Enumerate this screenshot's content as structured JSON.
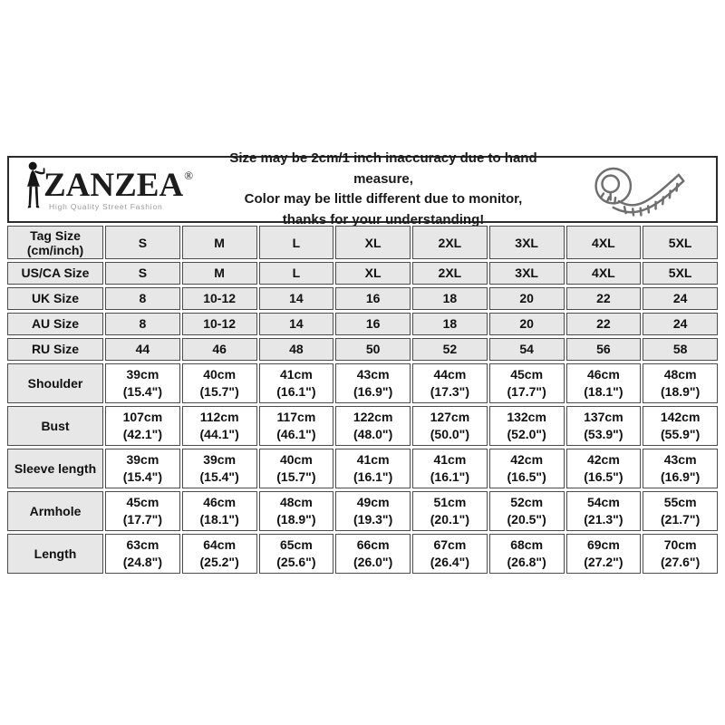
{
  "brand": {
    "name": "ZANZEA",
    "registered": "®",
    "tagline": "High Quality Street Fashion"
  },
  "disclaimer": {
    "line1": "Size may be 2cm/1 inch inaccuracy due to hand measure,",
    "line2": "Color may be little different due to monitor,",
    "line3": "thanks for your understanding!"
  },
  "icons": {
    "logo_figure": "woman-silhouette-icon",
    "tape_measure": "tape-measure-icon"
  },
  "colors": {
    "cell_background_shaded": "#e7e7e7",
    "cell_background_plain": "#ffffff",
    "cell_border": "#4c4c4c",
    "band_border": "#2b2b2b",
    "text": "#111111",
    "tagline_gray": "#9a9a9a",
    "tape_icon_gray": "#6f6f6f"
  },
  "size_table": {
    "columns": [
      "S",
      "M",
      "L",
      "XL",
      "2XL",
      "3XL",
      "4XL",
      "5XL"
    ],
    "rows": [
      {
        "label": "Tag Size (cm/inch)",
        "label_lines": [
          "Tag Size",
          "(cm/inch)"
        ],
        "shaded": true,
        "cells": [
          [
            "S"
          ],
          [
            "M"
          ],
          [
            "L"
          ],
          [
            "XL"
          ],
          [
            "2XL"
          ],
          [
            "3XL"
          ],
          [
            "4XL"
          ],
          [
            "5XL"
          ]
        ]
      },
      {
        "label": "US/CA Size",
        "shaded": true,
        "cells": [
          [
            "S"
          ],
          [
            "M"
          ],
          [
            "L"
          ],
          [
            "XL"
          ],
          [
            "2XL"
          ],
          [
            "3XL"
          ],
          [
            "4XL"
          ],
          [
            "5XL"
          ]
        ]
      },
      {
        "label": "UK Size",
        "shaded": true,
        "cells": [
          [
            "8"
          ],
          [
            "10-12"
          ],
          [
            "14"
          ],
          [
            "16"
          ],
          [
            "18"
          ],
          [
            "20"
          ],
          [
            "22"
          ],
          [
            "24"
          ]
        ]
      },
      {
        "label": "AU Size",
        "shaded": true,
        "cells": [
          [
            "8"
          ],
          [
            "10-12"
          ],
          [
            "14"
          ],
          [
            "16"
          ],
          [
            "18"
          ],
          [
            "20"
          ],
          [
            "22"
          ],
          [
            "24"
          ]
        ]
      },
      {
        "label": "RU Size",
        "shaded": true,
        "cells": [
          [
            "44"
          ],
          [
            "46"
          ],
          [
            "48"
          ],
          [
            "50"
          ],
          [
            "52"
          ],
          [
            "54"
          ],
          [
            "56"
          ],
          [
            "58"
          ]
        ]
      },
      {
        "label": "Shoulder",
        "shaded": false,
        "cells": [
          [
            "39cm",
            "(15.4\")"
          ],
          [
            "40cm",
            "(15.7\")"
          ],
          [
            "41cm",
            "(16.1\")"
          ],
          [
            "43cm",
            "(16.9\")"
          ],
          [
            "44cm",
            "(17.3\")"
          ],
          [
            "45cm",
            "(17.7\")"
          ],
          [
            "46cm",
            "(18.1\")"
          ],
          [
            "48cm",
            "(18.9\")"
          ]
        ]
      },
      {
        "label": "Bust",
        "shaded": false,
        "cells": [
          [
            "107cm",
            "(42.1\")"
          ],
          [
            "112cm",
            "(44.1\")"
          ],
          [
            "117cm",
            "(46.1\")"
          ],
          [
            "122cm",
            "(48.0\")"
          ],
          [
            "127cm",
            "(50.0\")"
          ],
          [
            "132cm",
            "(52.0\")"
          ],
          [
            "137cm",
            "(53.9\")"
          ],
          [
            "142cm",
            "(55.9\")"
          ]
        ]
      },
      {
        "label": "Sleeve length",
        "shaded": false,
        "cells": [
          [
            "39cm",
            "(15.4\")"
          ],
          [
            "39cm",
            "(15.4\")"
          ],
          [
            "40cm",
            "(15.7\")"
          ],
          [
            "41cm",
            "(16.1\")"
          ],
          [
            "41cm",
            "(16.1\")"
          ],
          [
            "42cm",
            "(16.5\")"
          ],
          [
            "42cm",
            "(16.5\")"
          ],
          [
            "43cm",
            "(16.9\")"
          ]
        ]
      },
      {
        "label": "Armhole",
        "shaded": false,
        "cells": [
          [
            "45cm",
            "(17.7\")"
          ],
          [
            "46cm",
            "(18.1\")"
          ],
          [
            "48cm",
            "(18.9\")"
          ],
          [
            "49cm",
            "(19.3\")"
          ],
          [
            "51cm",
            "(20.1\")"
          ],
          [
            "52cm",
            "(20.5\")"
          ],
          [
            "54cm",
            "(21.3\")"
          ],
          [
            "55cm",
            "(21.7\")"
          ]
        ]
      },
      {
        "label": "Length",
        "shaded": false,
        "cells": [
          [
            "63cm",
            "(24.8\")"
          ],
          [
            "64cm",
            "(25.2\")"
          ],
          [
            "65cm",
            "(25.6\")"
          ],
          [
            "66cm",
            "(26.0\")"
          ],
          [
            "67cm",
            "(26.4\")"
          ],
          [
            "68cm",
            "(26.8\")"
          ],
          [
            "69cm",
            "(27.2\")"
          ],
          [
            "70cm",
            "(27.6\")"
          ]
        ]
      }
    ]
  }
}
